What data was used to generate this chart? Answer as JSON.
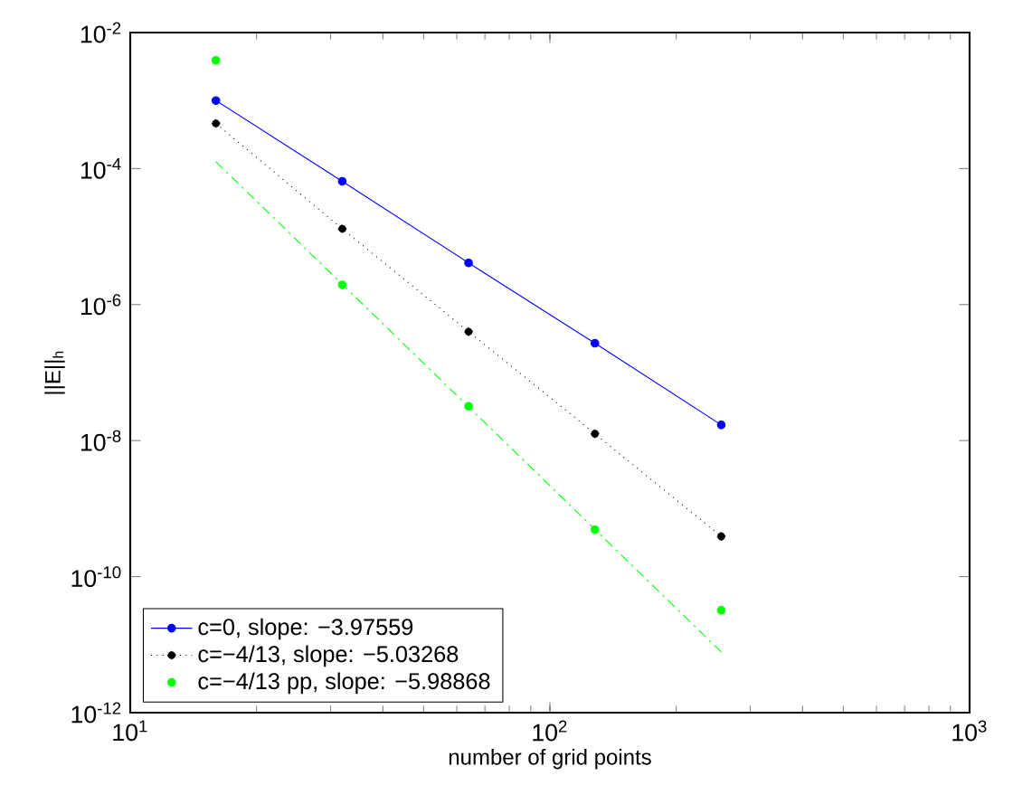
{
  "chart_data": {
    "type": "line",
    "xlabel": "number of grid points",
    "ylabel": "||E||$_{h}$",
    "log": "xy",
    "xlim": [
      10,
      1000
    ],
    "ylim": [
      1e-12,
      0.01
    ],
    "xticks": [
      {
        "value": 10,
        "label": "10$^{1}$"
      },
      {
        "value": 100,
        "label": "10$^{2}$"
      },
      {
        "value": 1000,
        "label": "10$^{3}$"
      }
    ],
    "yticks": [
      {
        "value": 1e-12,
        "label": "10$^{-12}$"
      },
      {
        "value": 1e-10,
        "label": "10$^{-10}$"
      },
      {
        "value": 1e-08,
        "label": "10$^{-8}$"
      },
      {
        "value": 1e-06,
        "label": "10$^{-6}$"
      },
      {
        "value": 0.0001,
        "label": "10$^{-4}$"
      },
      {
        "value": 0.01,
        "label": "10$^{-2}$"
      }
    ],
    "legend": "bottom left",
    "series": [
      {
        "name": "c=0, slope: −3.97559",
        "color": "#0000ff",
        "x": [
          16,
          32,
          64,
          128,
          256
        ],
        "values": [
          0.001,
          6.5e-05,
          4.1e-06,
          2.7e-07,
          1.7e-08
        ],
        "marker": "circle",
        "line_style": "solid"
      },
      {
        "name": "c=−4/13, slope: −5.03268",
        "color": "#000000",
        "x": [
          16,
          32,
          64,
          128,
          256
        ],
        "values": [
          0.00046,
          1.3e-05,
          4e-07,
          1.26e-08,
          3.9e-10
        ],
        "marker": "circle",
        "line_style": "dotted"
      },
      {
        "name": "c=−4/13 pp, slope: −5.98868",
        "type": "scatter",
        "color": "#00ff00",
        "x": [
          16,
          32,
          64,
          128,
          256
        ],
        "values": [
          0.0039,
          1.95e-06,
          3.2e-08,
          4.9e-10,
          3.2e-11
        ],
        "marker": "circle"
      },
      {
        "color": "#00ff00",
        "x": [
          16,
          256
        ],
        "values": [
          0.000126,
          7.8e-12
        ],
        "marker": "none",
        "line_style": "dashed"
      }
    ]
  }
}
